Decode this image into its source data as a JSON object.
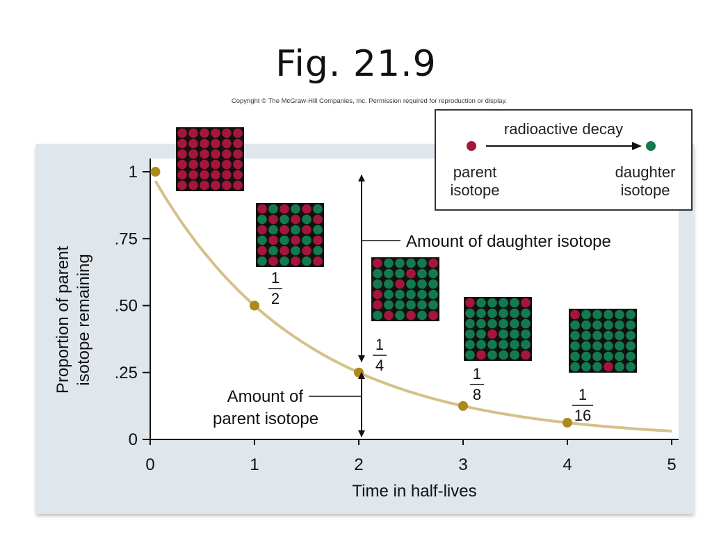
{
  "slide_title": "Fig. 21.9",
  "copyright": "Copyright © The McGraw-Hill Companies, Inc. Permission required for reproduction or display.",
  "legend": {
    "title": "radioactive decay",
    "parent_label_line1": "parent",
    "parent_label_line2": "isotope",
    "daughter_label_line1": "daughter",
    "daughter_label_line2": "isotope"
  },
  "colors": {
    "parent": "#a6163a",
    "daughter": "#137a50",
    "curve": "#d6c08a",
    "point": "#ad8a1c",
    "panel": "#dfe6ec"
  },
  "chart_data": {
    "type": "line",
    "xlabel": "Time in half-lives",
    "ylabel_line1": "Proportion of parent",
    "ylabel_line2": "isotope remaining",
    "x_ticks": [
      "0",
      "1",
      "2",
      "3",
      "4",
      "5"
    ],
    "y_ticks": [
      "0",
      ".25",
      ".50",
      ".75",
      "1"
    ],
    "xlim": [
      0,
      5
    ],
    "ylim": [
      0,
      1
    ],
    "series": [
      {
        "x": [
          0,
          1,
          2,
          3,
          4
        ],
        "y": [
          1,
          0.5,
          0.25,
          0.125,
          0.0625
        ]
      }
    ],
    "fraction_labels": [
      {
        "numerator": "1",
        "denominator": "2"
      },
      {
        "numerator": "1",
        "denominator": "4"
      },
      {
        "numerator": "1",
        "denominator": "8"
      },
      {
        "numerator": "1",
        "denominator": "16"
      }
    ],
    "annotations": {
      "daughter_amount": "Amount of daughter isotope",
      "parent_amount_line1": "Amount of",
      "parent_amount_line2": "parent isotope"
    },
    "isotope_grids": [
      {
        "half_lives": 0,
        "parent_count": 36,
        "daughter_count": 0
      },
      {
        "half_lives": 1,
        "parent_count": 18,
        "daughter_count": 18
      },
      {
        "half_lives": 2,
        "parent_count": 9,
        "daughter_count": 27
      },
      {
        "half_lives": 3,
        "parent_count": 5,
        "daughter_count": 31
      },
      {
        "half_lives": 4,
        "parent_count": 2,
        "daughter_count": 34
      }
    ]
  }
}
